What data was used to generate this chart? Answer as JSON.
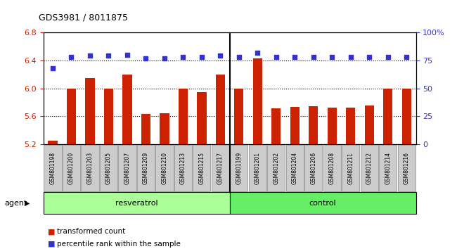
{
  "title": "GDS3981 / 8011875",
  "samples": [
    "GSM801198",
    "GSM801200",
    "GSM801203",
    "GSM801205",
    "GSM801207",
    "GSM801209",
    "GSM801210",
    "GSM801213",
    "GSM801215",
    "GSM801217",
    "GSM801199",
    "GSM801201",
    "GSM801202",
    "GSM801204",
    "GSM801206",
    "GSM801208",
    "GSM801211",
    "GSM801212",
    "GSM801214",
    "GSM801216"
  ],
  "transformed_count": [
    5.25,
    6.0,
    6.15,
    6.0,
    6.2,
    5.64,
    5.65,
    6.0,
    5.95,
    6.2,
    6.0,
    6.43,
    5.72,
    5.74,
    5.75,
    5.73,
    5.73,
    5.76,
    6.0,
    6.0
  ],
  "percentile_rank": [
    68,
    78,
    79,
    79,
    80,
    77,
    77,
    78,
    78,
    79,
    78,
    82,
    78,
    78,
    78,
    78,
    78,
    78,
    78,
    78
  ],
  "resveratrol_count": 10,
  "control_count": 10,
  "ylim_left": [
    5.2,
    6.8
  ],
  "ylim_right": [
    0,
    100
  ],
  "yticks_left": [
    5.2,
    5.6,
    6.0,
    6.4,
    6.8
  ],
  "yticks_right": [
    0,
    25,
    50,
    75,
    100
  ],
  "ytick_labels_right": [
    "0",
    "25",
    "50",
    "75",
    "100%"
  ],
  "bar_color": "#cc2200",
  "dot_color": "#3333cc",
  "resveratrol_color": "#aaff99",
  "control_color": "#66ee66",
  "bg_color": "#ffffff",
  "xlabel_color": "#cc2200",
  "ylabel_right_color": "#3333cc",
  "agent_label": "agent",
  "resveratrol_label": "resveratrol",
  "control_label": "control",
  "legend_bar_label": "transformed count",
  "legend_dot_label": "percentile rank within the sample",
  "xtick_bg_color": "#cccccc",
  "sep_color": "#000000"
}
